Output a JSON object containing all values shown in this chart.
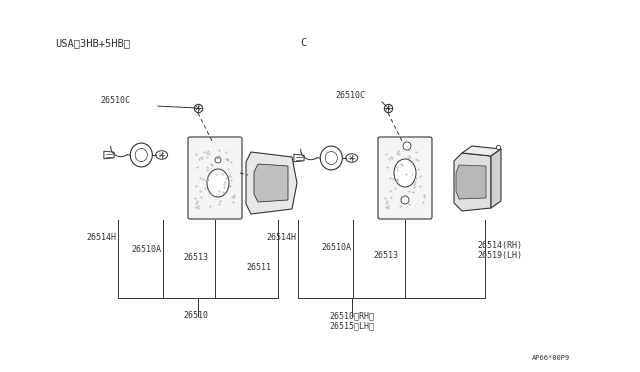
{
  "bg_color": "#ffffff",
  "line_color": "#333333",
  "text_color": "#333333",
  "fig_width": 6.4,
  "fig_height": 3.72,
  "title_left": "USA（3HB+5HB）",
  "title_right": "C",
  "watermark": "AP66*00P9",
  "left_part_labels": [
    "26514H",
    "26510A",
    "26513",
    "26511",
    "26510"
  ],
  "right_part_labels": [
    "26514H",
    "26510A",
    "26513",
    "26514(RH)\n26519(LH)",
    "26510(RH)\n26515(LH)"
  ],
  "screw_label": "26510C"
}
